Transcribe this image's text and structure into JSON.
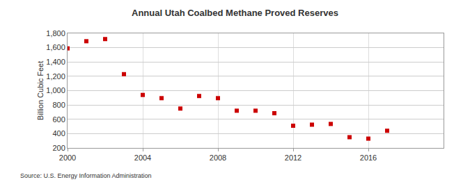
{
  "chart_data": {
    "type": "scatter",
    "title": "Annual Utah Coalbed Methane Proved Reserves",
    "y_label": "Billion Cubic Feet",
    "source": "Source: U.S. Energy Information Administration",
    "x": [
      2000,
      2001,
      2002,
      2003,
      2004,
      2005,
      2006,
      2007,
      2008,
      2009,
      2010,
      2011,
      2012,
      2013,
      2014,
      2015,
      2016,
      2017
    ],
    "values": [
      1590,
      1690,
      1720,
      1230,
      940,
      895,
      750,
      925,
      895,
      720,
      720,
      685,
      510,
      525,
      535,
      350,
      330,
      440
    ],
    "color": "#cc0000",
    "marker": "square",
    "xlim": [
      2000,
      2020
    ],
    "xticks": [
      2000,
      2004,
      2008,
      2012,
      2016
    ],
    "ylim": [
      200,
      1800
    ],
    "yticks": [
      200,
      400,
      600,
      800,
      {
        "value": 1000,
        "label": "1,000"
      },
      {
        "value": 1200,
        "label": "1,200"
      },
      {
        "value": 1400,
        "label": "1,400"
      },
      {
        "value": 1600,
        "label": "1,600"
      },
      {
        "value": 1800,
        "label": "1,800"
      }
    ],
    "grid": true
  }
}
